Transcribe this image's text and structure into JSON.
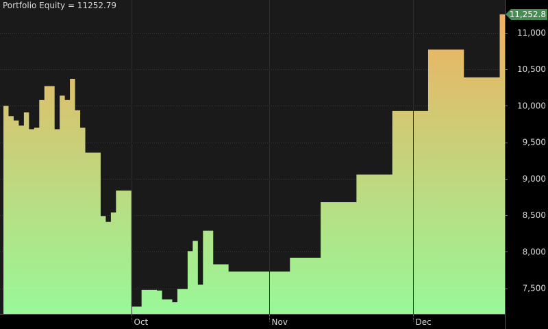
{
  "chart_data": {
    "type": "area",
    "title": "Portfolio Equity = 11252.79",
    "last_value_label": "11,252.8",
    "ylim": [
      7150,
      11450
    ],
    "y_ticks": [
      {
        "value": 7500,
        "label": "7,500"
      },
      {
        "value": 8000,
        "label": "8,000"
      },
      {
        "value": 8500,
        "label": "8,500"
      },
      {
        "value": 9000,
        "label": "9,000"
      },
      {
        "value": 9500,
        "label": "9,500"
      },
      {
        "value": 10000,
        "label": "10,000"
      },
      {
        "value": 10500,
        "label": "10,500"
      },
      {
        "value": 11000,
        "label": "11,000"
      }
    ],
    "x_ticks": [
      {
        "index": 25,
        "label": "Oct"
      },
      {
        "index": 52,
        "label": "Nov"
      },
      {
        "index": 80,
        "label": "Dec"
      }
    ],
    "x_count": 98,
    "values": [
      10000,
      9860,
      9800,
      9730,
      9910,
      9680,
      9700,
      10080,
      10270,
      10270,
      9680,
      10140,
      10080,
      10370,
      9940,
      9700,
      9360,
      9360,
      9360,
      8490,
      8410,
      8540,
      8840,
      8840,
      8840,
      7250,
      7250,
      7480,
      7480,
      7480,
      7470,
      7350,
      7350,
      7310,
      7490,
      7490,
      8010,
      8150,
      7550,
      8290,
      8290,
      7830,
      7830,
      7830,
      7730,
      7730,
      7730,
      7730,
      7730,
      7730,
      7730,
      7730,
      7730,
      7730,
      7730,
      7730,
      7920,
      7920,
      7920,
      7920,
      7920,
      7920,
      8680,
      8680,
      8680,
      8680,
      8680,
      8680,
      8680,
      9060,
      9060,
      9060,
      9060,
      9060,
      9060,
      9060,
      9930,
      9930,
      9930,
      9930,
      9930,
      9930,
      9930,
      10770,
      10770,
      10770,
      10770,
      10770,
      10770,
      10770,
      10390,
      10390,
      10390,
      10390,
      10390,
      10390,
      10390,
      11252.79
    ],
    "colors": {
      "background": "#000000",
      "plot_background": "#1a1a1a",
      "area_top": "#f0b060",
      "area_bottom": "#98f898",
      "grid": "#3a3a3a",
      "divider": "#2e2e2e",
      "last_label_bg": "#4a8a54"
    }
  }
}
